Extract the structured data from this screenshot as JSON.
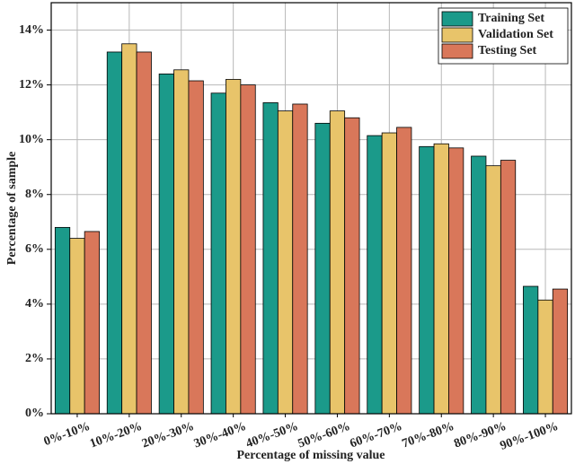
{
  "chart_data": {
    "type": "bar",
    "x_label": "Percentage of missing value",
    "y_label": "Percentage of sample",
    "categories": [
      "0%-10%",
      "10%-20%",
      "20%-30%",
      "30%-40%",
      "40%-50%",
      "50%-60%",
      "60%-70%",
      "70%-80%",
      "80%-90%",
      "90%-100%"
    ],
    "series": [
      {
        "name": "Training Set",
        "color": "#1b9a8a",
        "values": [
          6.8,
          13.2,
          12.4,
          11.7,
          11.35,
          10.6,
          10.15,
          9.75,
          9.4,
          4.65
        ]
      },
      {
        "name": "Validation Set",
        "color": "#e8c46a",
        "values": [
          6.4,
          13.5,
          12.55,
          12.2,
          11.05,
          11.05,
          10.25,
          9.85,
          9.05,
          4.15
        ]
      },
      {
        "name": "Testing Set",
        "color": "#d9775a",
        "values": [
          6.65,
          13.2,
          12.15,
          12.0,
          11.3,
          10.8,
          10.45,
          9.7,
          9.25,
          4.55
        ]
      }
    ],
    "ylim": [
      0,
      15
    ],
    "yticks": [
      {
        "value": 0,
        "label": "0%"
      },
      {
        "value": 2,
        "label": "2%"
      },
      {
        "value": 4,
        "label": "4%"
      },
      {
        "value": 6,
        "label": "6%"
      },
      {
        "value": 8,
        "label": "8%"
      },
      {
        "value": 10,
        "label": "10%"
      },
      {
        "value": 12,
        "label": "12%"
      },
      {
        "value": 14,
        "label": "14%"
      }
    ],
    "grid": true,
    "legend": "top-right"
  }
}
